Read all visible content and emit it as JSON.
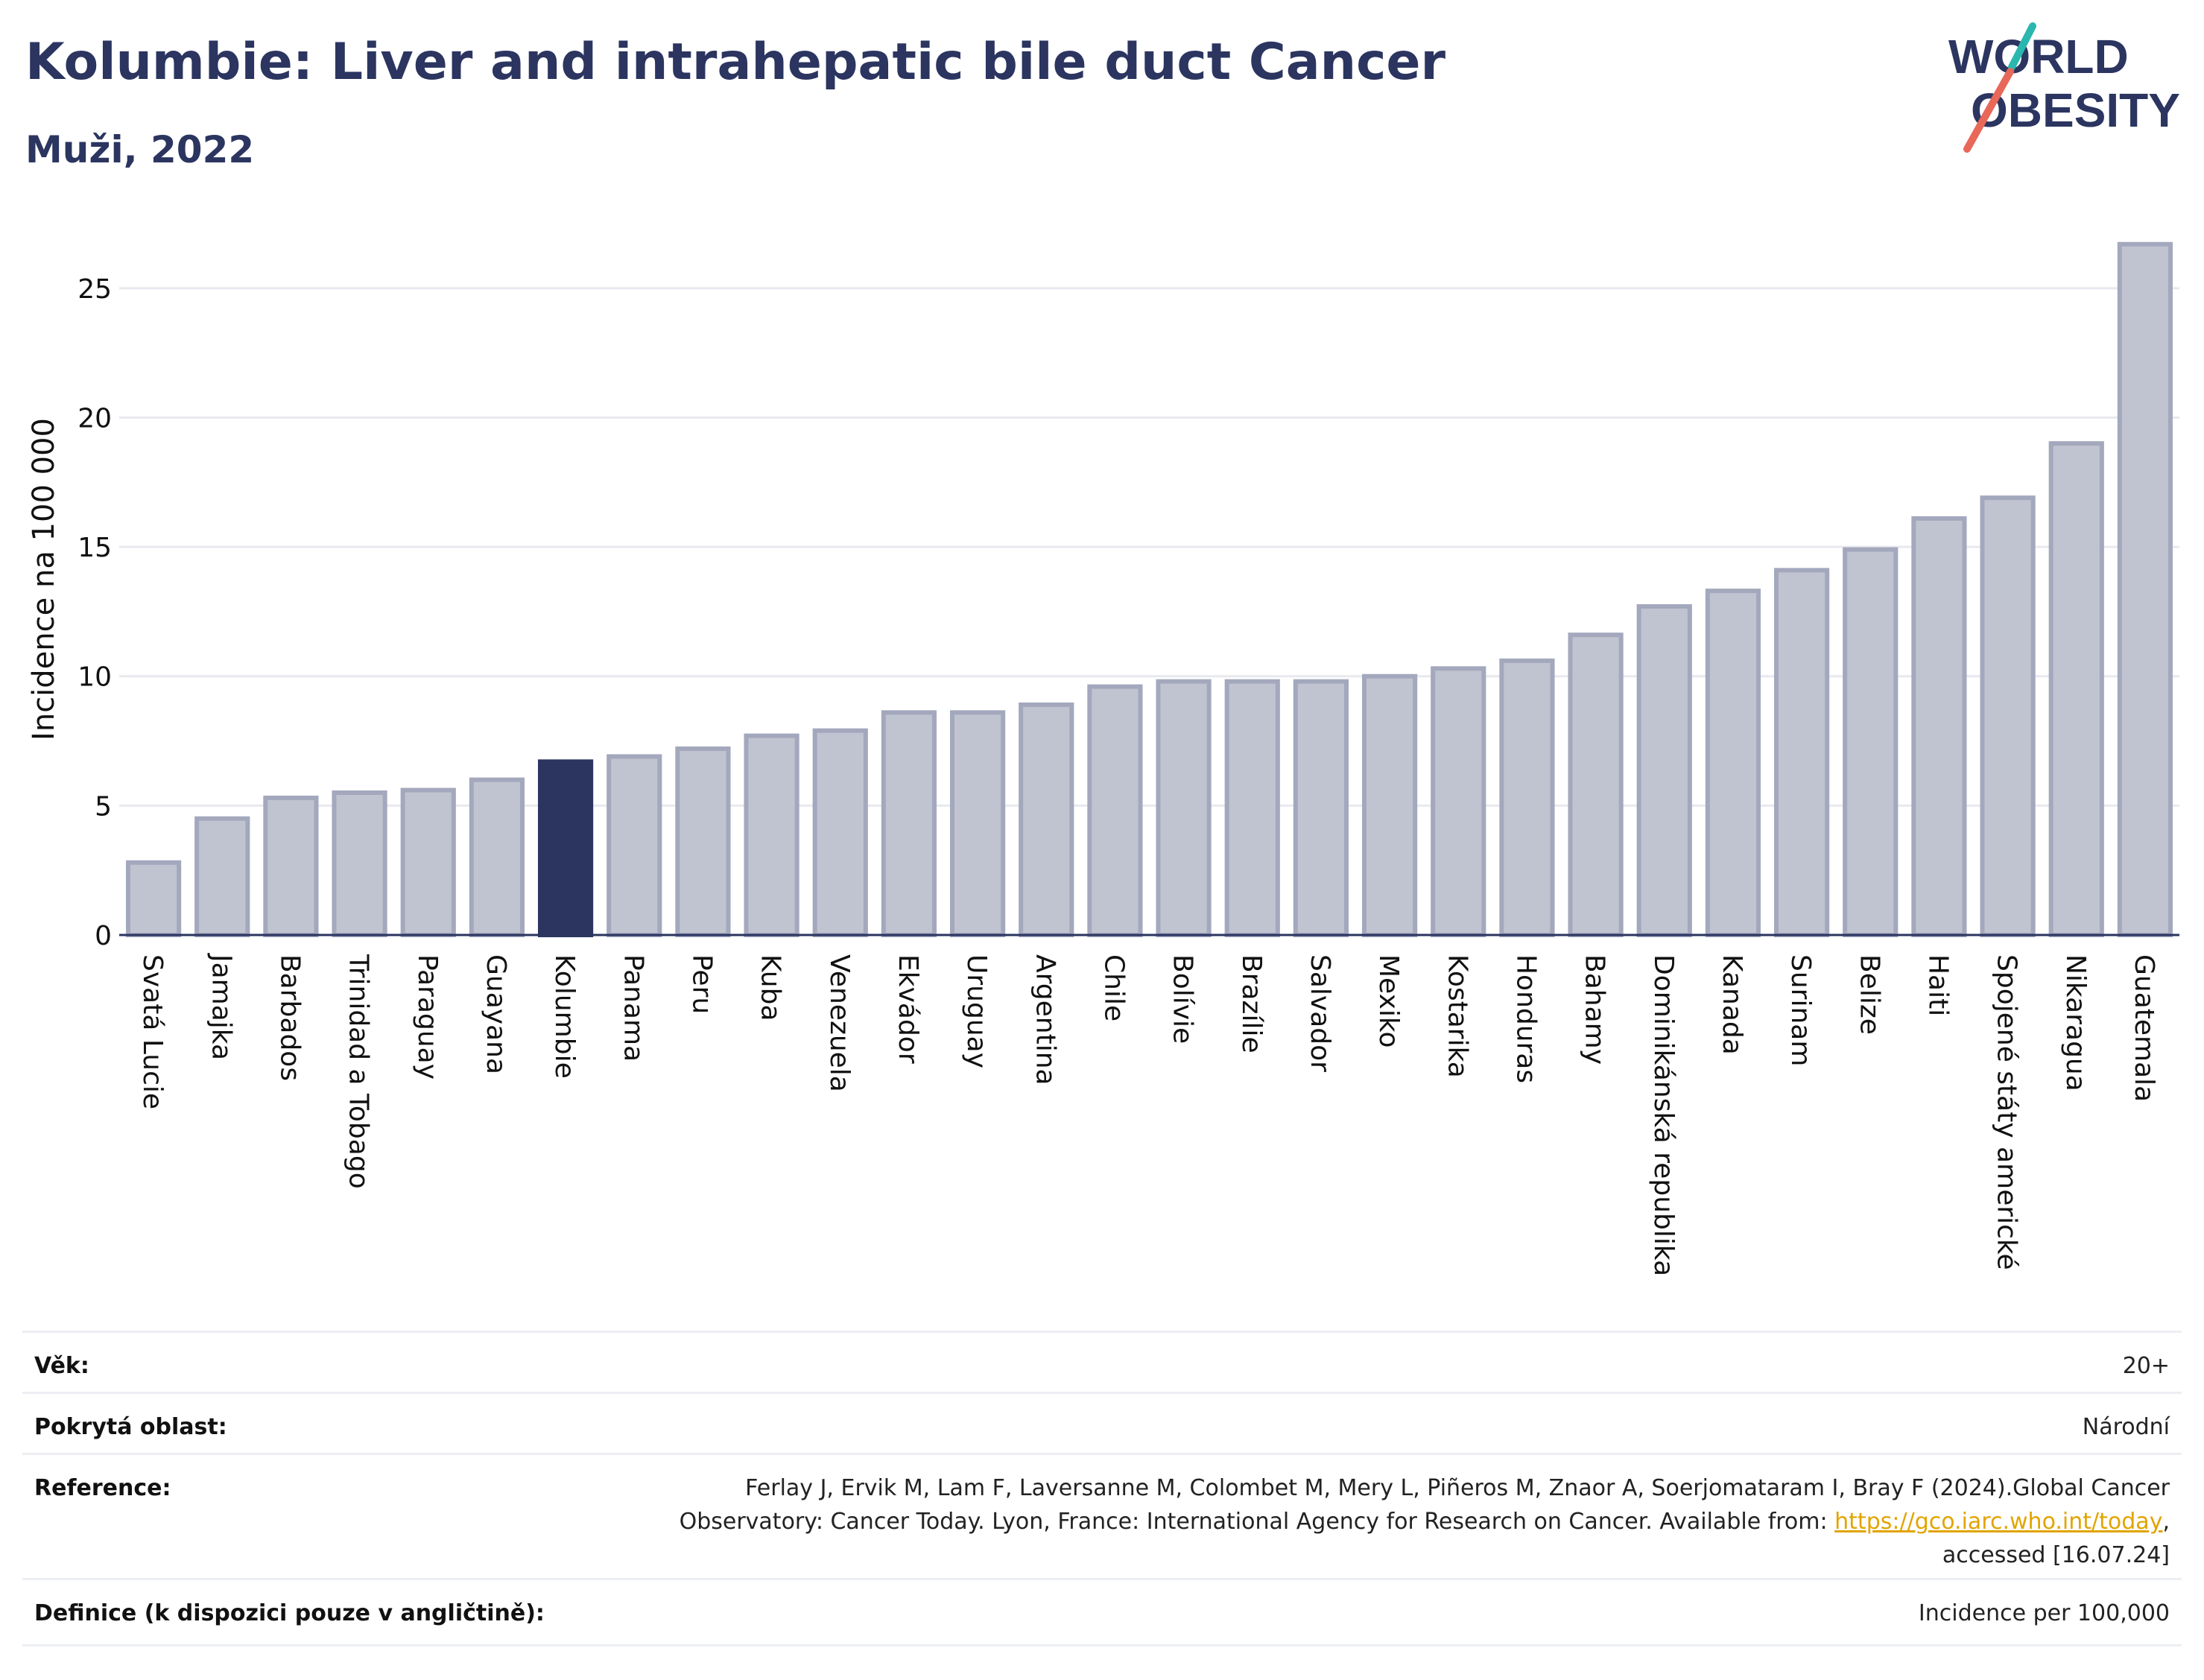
{
  "header": {
    "title": "Kolumbie: Liver and intrahepatic bile duct Cancer",
    "subtitle": "Muži, 2022"
  },
  "logo": {
    "line1": "WORLD",
    "line2": "OBESITY"
  },
  "colors": {
    "highlight": "#2b3560",
    "bar": "#c0c4d0",
    "bar_edge": "#a3a8bd",
    "grid": "#e8e9ef",
    "logo_text": "#2b3560",
    "logo_teal": "#2ab7b0",
    "logo_red": "#e8685a"
  },
  "chart_data": {
    "type": "bar",
    "ylabel": "Incidence na 100 000",
    "ylim": [
      0,
      27.5
    ],
    "yticks": [
      0,
      5,
      10,
      15,
      20,
      25
    ],
    "grid": true,
    "highlight": "Kolumbie",
    "categories": [
      "Svatá Lucie",
      "Jamajka",
      "Barbados",
      "Trinidad a Tobago",
      "Paraguay",
      "Guayana",
      "Kolumbie",
      "Panama",
      "Peru",
      "Kuba",
      "Venezuela",
      "Ekvádor",
      "Uruguay",
      "Argentina",
      "Chile",
      "Bolívie",
      "Brazílie",
      "Salvador",
      "Mexiko",
      "Kostarika",
      "Honduras",
      "Bahamy",
      "Dominikánská republika",
      "Kanada",
      "Surinam",
      "Belize",
      "Haiti",
      "Spojené státy americké",
      "Nikaragua",
      "Guatemala"
    ],
    "values": [
      2.8,
      4.5,
      5.3,
      5.5,
      5.6,
      6.0,
      6.7,
      6.9,
      7.2,
      7.7,
      7.9,
      8.6,
      8.6,
      8.9,
      9.6,
      9.8,
      9.8,
      9.8,
      10.0,
      10.3,
      10.6,
      11.6,
      12.7,
      13.3,
      14.1,
      14.9,
      16.1,
      16.9,
      19.0,
      26.7
    ]
  },
  "meta": [
    {
      "key": "Věk:",
      "value": "20+"
    },
    {
      "key": "Pokrytá oblast:",
      "value": "Národní"
    },
    {
      "key": "Reference:",
      "value_line1": "Ferlay J, Ervik M, Lam F, Laversanne M, Colombet M, Mery L, Piñeros M, Znaor A, Soerjomataram I, Bray F (2024).Global Cancer",
      "value_line2_pre": "Observatory: Cancer Today. Lyon, France: International Agency for Research on Cancer. Available from: ",
      "link": "https://gco.iarc.who.int/today",
      "value_line2_post": ",",
      "value_line3": "accessed [16.07.24]"
    },
    {
      "key": "Definice (k dispozici pouze v angličtině):",
      "value": "Incidence per 100,000"
    }
  ]
}
